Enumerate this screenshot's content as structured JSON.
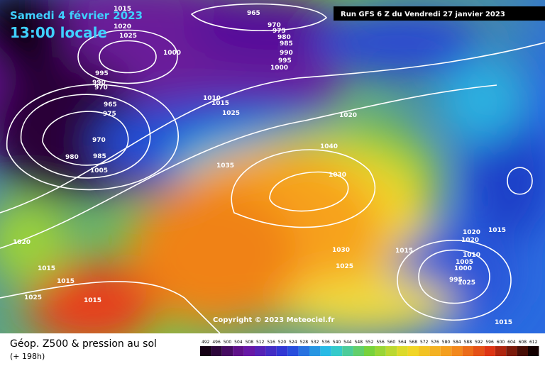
{
  "header": {
    "date": "Samedi 4 février 2023",
    "time": "13:00 locale",
    "run": "Run GFS 6 Z du Vendredi 27 janvier 2023"
  },
  "copyright": "Copyright © 2023 Meteociel.fr",
  "footer": {
    "title": "Géop. Z500 & pression au sol",
    "lead": "(+ 198h)"
  },
  "isobar_labels": [
    "1015",
    "1020",
    "1025",
    "965",
    "970",
    "975",
    "980",
    "985",
    "990",
    "995",
    "1000",
    "1000",
    "995",
    "990",
    "970",
    "965",
    "975",
    "970",
    "980",
    "985",
    "1005",
    "1010",
    "1015",
    "1025",
    "1020",
    "1035",
    "1040",
    "1030",
    "1030",
    "1025",
    "1015",
    "1020",
    "1020",
    "1015",
    "1010",
    "1005",
    "1000",
    "995",
    "1025",
    "1020",
    "1015",
    "1015",
    "1025",
    "1015",
    "1015"
  ],
  "legend": {
    "labels": [
      "492",
      "496",
      "500",
      "504",
      "508",
      "512",
      "516",
      "520",
      "524",
      "528",
      "532",
      "536",
      "540",
      "544",
      "548",
      "552",
      "556",
      "560",
      "564",
      "568",
      "572",
      "576",
      "580",
      "584",
      "588",
      "592",
      "596",
      "600",
      "604",
      "608",
      "612"
    ]
  }
}
